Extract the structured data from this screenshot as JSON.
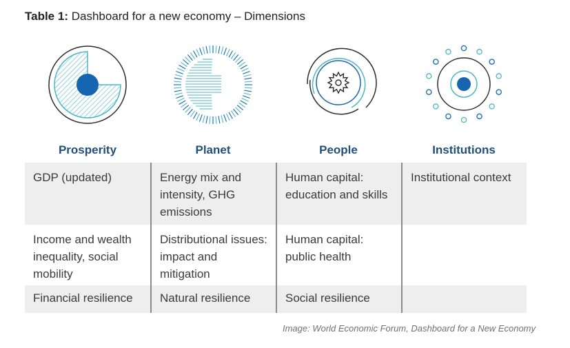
{
  "title": {
    "label": "Table 1:",
    "text": "Dashboard for a new economy – Dimensions"
  },
  "icons": {
    "prosperity": "prosperity-icon",
    "planet": "planet-icon",
    "people": "people-icon",
    "institutions": "institutions-icon",
    "primary_color": "#1565b0",
    "accent_color": "#4bb6c6"
  },
  "headers": [
    "Prosperity",
    "Planet",
    "People",
    "Institutions"
  ],
  "rows": [
    [
      "GDP (updated)",
      "Energy mix and intensity, GHG emissions",
      "Human capital: education and skills",
      "Institutional context"
    ],
    [
      "Income and wealth inequality, social mobility",
      "Distributional issues: impact and mitigation",
      "Human capital: public health",
      ""
    ],
    [
      "Financial resilience",
      "Natural resilience",
      "Social resilience",
      ""
    ]
  ],
  "caption": "Image: World Economic Forum, Dashboard for a New Economy"
}
